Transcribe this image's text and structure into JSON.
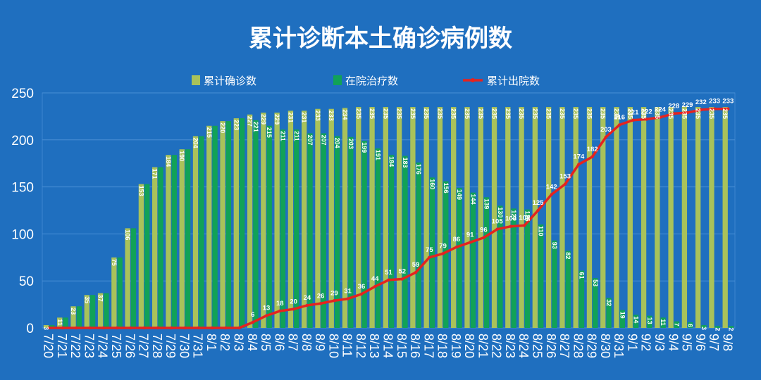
{
  "title": "累计诊断本土确诊病例数",
  "colors": {
    "background": "#1f6fbf",
    "cumulative": "#a9c25a",
    "hospital": "#11a257",
    "discharged": "#e5231f"
  },
  "chart_data": {
    "type": "bar",
    "title": "累计诊断本土确诊病例数",
    "xlabel": "",
    "ylabel": "",
    "ylim": [
      0,
      250
    ],
    "yticks": [
      0,
      50,
      100,
      150,
      200,
      250
    ],
    "grid": true,
    "legend_position": "top",
    "categories": [
      "7/20",
      "7/21",
      "7/22",
      "7/23",
      "7/24",
      "7/25",
      "7/26",
      "7/27",
      "7/28",
      "7/29",
      "7/30",
      "7/31",
      "8/1",
      "8/2",
      "8/3",
      "8/4",
      "8/5",
      "8/6",
      "8/7",
      "8/8",
      "8/9",
      "8/10",
      "8/11",
      "8/12",
      "8/13",
      "8/14",
      "8/15",
      "8/16",
      "8/17",
      "8/18",
      "8/19",
      "8/20",
      "8/21",
      "8/22",
      "8/23",
      "8/24",
      "8/25",
      "8/26",
      "8/27",
      "8/28",
      "8/29",
      "8/30",
      "8/31",
      "9/1",
      "9/2",
      "9/3",
      "9/4",
      "9/5",
      "9/6",
      "9/7",
      "9/8"
    ],
    "series": [
      {
        "name": "累计确诊数",
        "kind": "bar",
        "values": [
          3,
          11,
          23,
          35,
          37,
          75,
          106,
          153,
          171,
          184,
          190,
          204,
          215,
          220,
          223,
          227,
          229,
          229,
          231,
          231,
          233,
          233,
          234,
          235,
          235,
          235,
          235,
          235,
          235,
          235,
          235,
          235,
          235,
          235,
          235,
          235,
          235,
          235,
          235,
          235,
          235,
          235,
          235,
          235,
          235,
          235,
          235,
          235,
          235,
          235,
          235
        ],
        "labels": [
          "3",
          "11",
          "23",
          "35",
          "37",
          "75",
          "106",
          "153",
          "171",
          "184",
          "190",
          "204",
          "215",
          "220",
          "223",
          "227",
          "229",
          "229",
          "231",
          "231",
          "233",
          "233",
          "234",
          "235",
          "235",
          "235",
          "235",
          "235",
          "235",
          "235",
          "235",
          "235",
          "235",
          "235",
          "235",
          "235",
          "235",
          "235",
          "235",
          "235",
          "235",
          "235",
          "235",
          "235",
          "235",
          "235",
          "235",
          "235",
          "235",
          "235",
          "235"
        ]
      },
      {
        "name": "在院治疗数",
        "kind": "bar",
        "values": [
          3,
          11,
          23,
          35,
          37,
          75,
          106,
          153,
          171,
          184,
          190,
          204,
          215,
          220,
          223,
          221,
          215,
          211,
          211,
          207,
          207,
          204,
          203,
          199,
          191,
          184,
          183,
          176,
          160,
          156,
          149,
          144,
          139,
          130,
          127,
          126,
          110,
          93,
          82,
          61,
          53,
          32,
          19,
          14,
          13,
          11,
          7,
          6,
          3,
          2,
          2
        ],
        "labels": [
          "",
          "",
          "",
          "",
          "",
          "",
          "",
          "",
          "",
          "",
          "",
          "",
          "",
          "",
          "",
          "221",
          "215",
          "211",
          "211",
          "207",
          "207",
          "204",
          "203",
          "199",
          "191",
          "184",
          "183",
          "176",
          "160",
          "156",
          "149",
          "144",
          "139",
          "130",
          "127",
          "126",
          "110",
          "93",
          "82",
          "61",
          "53",
          "32",
          "19",
          "14",
          "13",
          "11",
          "7",
          "6",
          "3",
          "2",
          "2"
        ]
      },
      {
        "name": "累计出院数",
        "kind": "line",
        "values": [
          0,
          0,
          0,
          0,
          0,
          0,
          0,
          0,
          0,
          0,
          0,
          0,
          0,
          0,
          0,
          6,
          13,
          18,
          20,
          24,
          26,
          29,
          31,
          36,
          44,
          51,
          52,
          59,
          75,
          79,
          86,
          91,
          96,
          105,
          108,
          109,
          125,
          142,
          153,
          174,
          182,
          203,
          216,
          221,
          222,
          224,
          228,
          229,
          232,
          233,
          233
        ],
        "labels": [
          "",
          "",
          "",
          "",
          "",
          "",
          "",
          "",
          "",
          "",
          "",
          "",
          "",
          "",
          "",
          "6",
          "13",
          "18",
          "20",
          "24",
          "26",
          "29",
          "31",
          "36",
          "44",
          "51",
          "52",
          "59",
          "75",
          "79",
          "86",
          "91",
          "96",
          "105",
          "108",
          "109",
          "125",
          "142",
          "153",
          "174",
          "182",
          "203",
          "216",
          "221",
          "222",
          "224",
          "228",
          "229",
          "232",
          "233",
          "233"
        ]
      }
    ]
  }
}
